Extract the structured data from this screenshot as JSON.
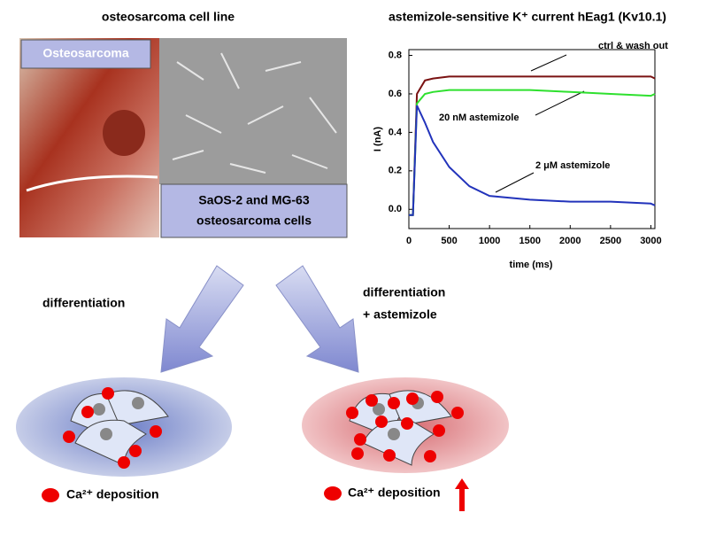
{
  "header": {
    "left_title": "osteosarcoma cell line"
  },
  "panel": {
    "tissue_label": "Osteosarcoma",
    "cells_label": [
      "SaOS-2 and MG-63",
      "osteosarcoma cells"
    ]
  },
  "flow": {
    "left_label": "differentiation",
    "right_label": [
      "differentiation",
      "+ astemizole"
    ]
  },
  "legend": {
    "left": "Ca²⁺ deposition",
    "right": "Ca²⁺ deposition"
  },
  "chart_data": {
    "type": "line",
    "title": "astemizole-sensitive K⁺ current hEag1 (Kv10.1)",
    "x_label": "time (ms)",
    "y_label": "I (nA)",
    "x": [
      0,
      50,
      100,
      200,
      300,
      500,
      750,
      1000,
      1250,
      1500,
      2000,
      2500,
      3000,
      3050
    ],
    "series": [
      {
        "name": "ctrl & wash out",
        "color": "#7a1212",
        "values": [
          -0.03,
          -0.03,
          0.6,
          0.67,
          0.68,
          0.69,
          0.69,
          0.69,
          0.69,
          0.69,
          0.69,
          0.69,
          0.69,
          0.68
        ]
      },
      {
        "name": "20 nM astemizole",
        "color": "#2ee02e",
        "values": [
          -0.03,
          -0.03,
          0.55,
          0.6,
          0.61,
          0.62,
          0.62,
          0.62,
          0.62,
          0.62,
          0.61,
          0.6,
          0.59,
          0.6
        ]
      },
      {
        "name": "2 μM astemizole",
        "color": "#2233bb",
        "values": [
          -0.03,
          -0.03,
          0.54,
          0.45,
          0.35,
          0.22,
          0.12,
          0.07,
          0.06,
          0.05,
          0.04,
          0.04,
          0.03,
          0.02
        ]
      }
    ],
    "xlim": [
      0,
      3050
    ],
    "ylim": [
      -0.1,
      0.83
    ],
    "xticks": [
      0,
      500,
      1000,
      1500,
      2000,
      2500,
      3000
    ],
    "yticks": [
      {
        "value": 0,
        "label": "0.0"
      },
      0.2,
      0.4,
      0.6,
      0.8
    ]
  }
}
